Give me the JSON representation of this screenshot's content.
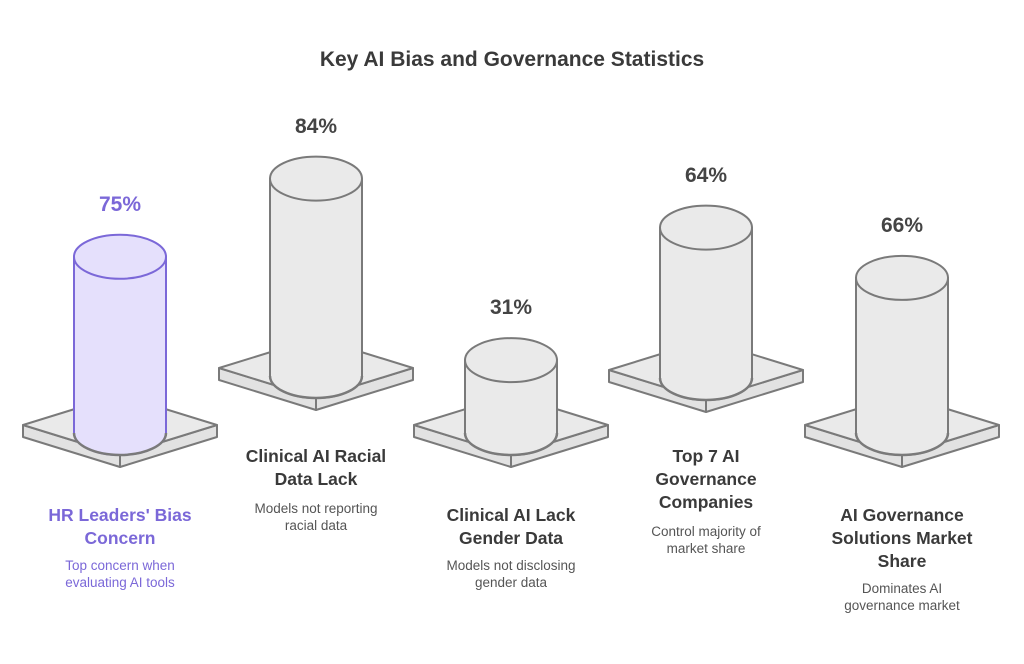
{
  "chart_data": {
    "type": "bar",
    "style": "3d-cylinders",
    "title": "Key AI Bias and Governance Statistics",
    "unit": "%",
    "categories": [
      "HR Leaders' Bias Concern",
      "Clinical AI Racial Data Lack",
      "Clinical AI Lack Gender Data",
      "Top 7 AI Governance Companies",
      "AI Governance Solutions Market Share"
    ],
    "values": [
      75,
      84,
      31,
      64,
      66
    ],
    "value_labels": [
      "75%",
      "84%",
      "31%",
      "64%",
      "66%"
    ],
    "descriptions": [
      "Top concern when evaluating AI tools",
      "Models not reporting racial data",
      "Models not disclosing gender data",
      "Control majority of market share",
      "Dominates AI governance market"
    ],
    "highlighted_index": 0
  },
  "colors": {
    "highlight_stroke": "#7B68D8",
    "highlight_fill": "#E5E0FC",
    "stroke": "#7a7a7a",
    "fill": "#EAEAEA",
    "text": "#3a3a3a"
  }
}
